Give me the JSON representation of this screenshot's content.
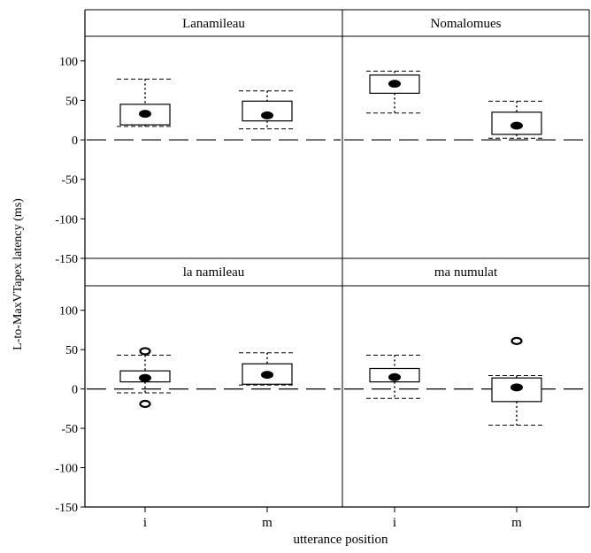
{
  "chart_data": {
    "type": "box",
    "ylabel": "L-to-MaxVTapex latency (ms)",
    "xlabel": "utterance position",
    "categories": [
      "i",
      "m"
    ],
    "y_ticks": [
      100,
      50,
      0,
      -50,
      -100,
      -150
    ],
    "ylim": [
      -150,
      130
    ],
    "reference_line": 0,
    "panels": [
      {
        "title": "Lanamileau",
        "position": "top-left",
        "boxes": [
          {
            "category": "i",
            "q1": 19,
            "median": 33,
            "q3": 45,
            "whisker_low": 17,
            "whisker_high": 77,
            "outliers": []
          },
          {
            "category": "m",
            "q1": 24,
            "median": 31,
            "q3": 49,
            "whisker_low": 14,
            "whisker_high": 62,
            "outliers": []
          }
        ]
      },
      {
        "title": "Nomalomues",
        "position": "top-right",
        "boxes": [
          {
            "category": "i",
            "q1": 59,
            "median": 71,
            "q3": 82,
            "whisker_low": 34,
            "whisker_high": 87,
            "outliers": []
          },
          {
            "category": "m",
            "q1": 7,
            "median": 18,
            "q3": 35,
            "whisker_low": 2,
            "whisker_high": 49,
            "outliers": []
          }
        ]
      },
      {
        "title": "la namileau",
        "position": "bottom-left",
        "boxes": [
          {
            "category": "i",
            "q1": 9,
            "median": 14,
            "q3": 23,
            "whisker_low": -5,
            "whisker_high": 43,
            "outliers": [
              48,
              -19
            ]
          },
          {
            "category": "m",
            "q1": 6,
            "median": 18,
            "q3": 32,
            "whisker_low": 5,
            "whisker_high": 46,
            "outliers": []
          }
        ]
      },
      {
        "title": "ma numulat",
        "position": "bottom-right",
        "boxes": [
          {
            "category": "i",
            "q1": 9,
            "median": 15,
            "q3": 26,
            "whisker_low": -12,
            "whisker_high": 43,
            "outliers": []
          },
          {
            "category": "m",
            "q1": -16,
            "median": 2,
            "q3": 14,
            "whisker_low": -46,
            "whisker_high": 17,
            "outliers": [
              61
            ]
          }
        ]
      }
    ]
  }
}
